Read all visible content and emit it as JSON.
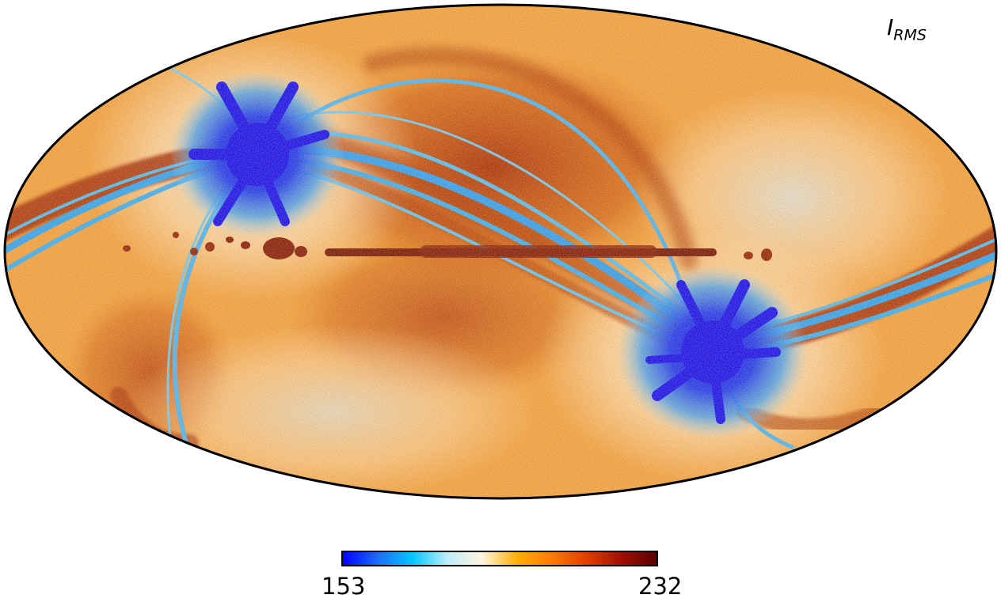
{
  "label": {
    "main": "I",
    "sub": "RMS"
  },
  "colorbar": {
    "min": "153",
    "max": "232",
    "colors": [
      "#0000ff",
      "#1e6cff",
      "#00c8ff",
      "#bfeef8",
      "#fff4e0",
      "#ffb000",
      "#ff7a00",
      "#e83a00",
      "#a01000",
      "#5a0000"
    ]
  },
  "colors": {
    "background_orange": "#f3a33a",
    "light_cream": "#fde7c0",
    "dark_red": "#8b1a00",
    "blue_core": "#0010ff",
    "cyan_band": "#2aa8ff"
  }
}
